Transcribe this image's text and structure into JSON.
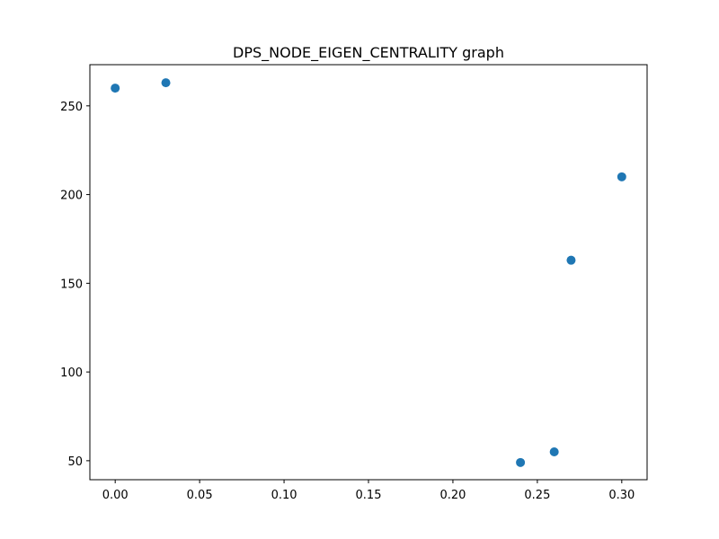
{
  "chart_data": {
    "type": "scatter",
    "title": "DPS_NODE_EIGEN_CENTRALITY graph",
    "xlabel": "",
    "ylabel": "",
    "x": [
      0.0,
      0.03,
      0.24,
      0.26,
      0.27,
      0.3
    ],
    "y": [
      260,
      263,
      49,
      55,
      163,
      210
    ],
    "xlim": [
      -0.015,
      0.315
    ],
    "ylim": [
      39.3,
      273.2
    ],
    "xticks": [
      0.0,
      0.05,
      0.1,
      0.15,
      0.2,
      0.25,
      0.3
    ],
    "xtick_labels": [
      "0.00",
      "0.05",
      "0.10",
      "0.15",
      "0.20",
      "0.25",
      "0.30"
    ],
    "yticks": [
      50,
      100,
      150,
      200,
      250
    ],
    "ytick_labels": [
      "50",
      "100",
      "150",
      "200",
      "250"
    ],
    "grid": false,
    "marker_color": "#1f77b4"
  }
}
